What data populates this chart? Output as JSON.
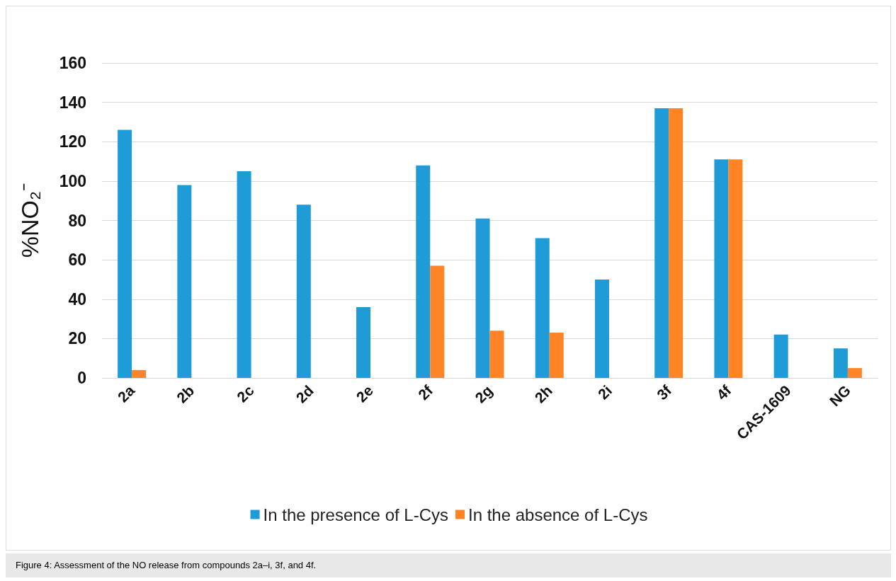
{
  "chart_data": {
    "type": "bar",
    "ylabel": "%NO₂⁻",
    "categories": [
      "2a",
      "2b",
      "2c",
      "2d",
      "2e",
      "2f",
      "2g",
      "2h",
      "2i",
      "3f",
      "4f",
      "CAS-1609",
      "NG"
    ],
    "series": [
      {
        "name": "In the presence of L-Cys",
        "color": "#1f9bd7",
        "values": [
          126,
          98,
          105,
          88,
          36,
          108,
          81,
          71,
          50,
          137,
          111,
          22,
          15
        ]
      },
      {
        "name": "In the absence of L-Cys",
        "color": "#ff8426",
        "values": [
          4,
          null,
          null,
          null,
          null,
          57,
          24,
          23,
          null,
          137,
          111,
          null,
          5
        ]
      }
    ],
    "ylim": [
      0,
      160
    ],
    "yticks": [
      0,
      20,
      40,
      60,
      80,
      100,
      120,
      140,
      160
    ],
    "grid": "y",
    "legend": "bottom",
    "annotations": [
      "Figure 4: Assessment of the NO release from compounds 2a–i, 3f, and 4f."
    ]
  }
}
